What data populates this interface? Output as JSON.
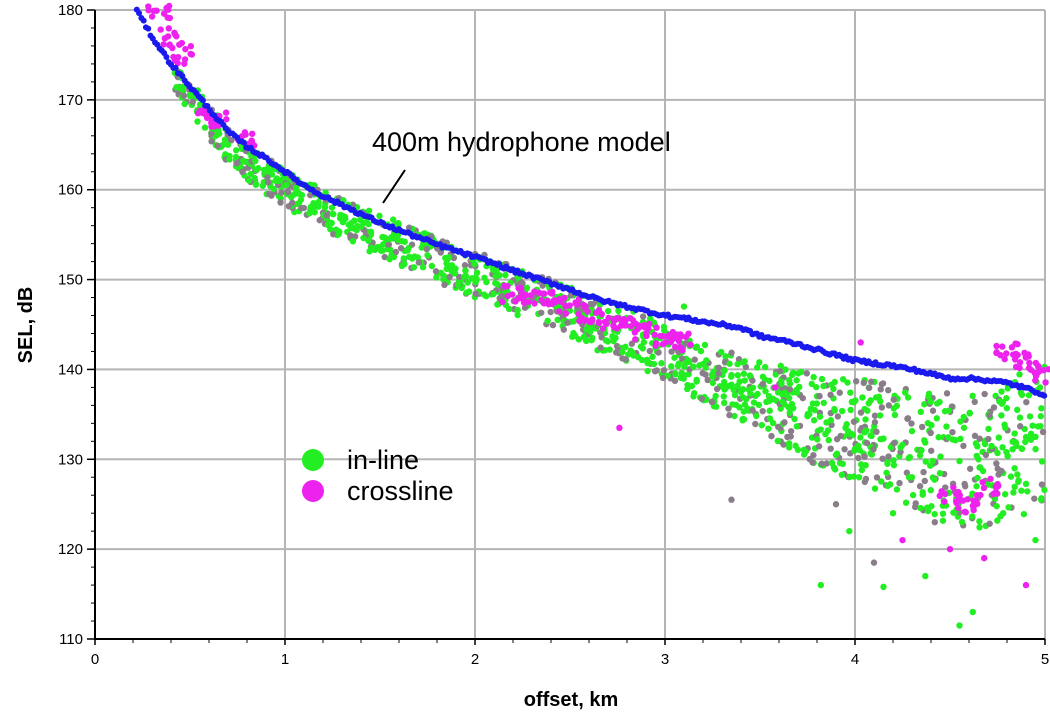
{
  "chart_data": {
    "type": "scatter",
    "xlabel": "offset, km",
    "ylabel": "SEL, dB",
    "xlim": [
      0,
      5
    ],
    "ylim": [
      110,
      180
    ],
    "xticks": [
      0,
      1,
      2,
      3,
      4,
      5
    ],
    "xtick_labels": [
      "0",
      "1",
      "2",
      "3",
      "4",
      "5"
    ],
    "yticks": [
      110,
      120,
      130,
      140,
      150,
      160,
      170,
      180
    ],
    "ytick_labels": [
      "110",
      "120",
      "130",
      "140",
      "150",
      "160",
      "170",
      "180"
    ],
    "grid": true,
    "legend_placement": "lower-left",
    "legend": [
      {
        "label": "in-line",
        "color": "#22ee22"
      },
      {
        "label": "crossline",
        "color": "#ee22ee"
      }
    ],
    "annotation": {
      "text": "400m hydrophone model",
      "x": 1.5,
      "y": 157
    },
    "series": [
      {
        "name": "400m hydrophone model",
        "color": "#1a1aee",
        "x": [
          0.22,
          0.3,
          0.4,
          0.5,
          0.6,
          0.7,
          0.8,
          0.9,
          1.0,
          1.1,
          1.2,
          1.3,
          1.4,
          1.5,
          1.6,
          1.7,
          1.8,
          1.9,
          2.0,
          2.1,
          2.2,
          2.3,
          2.4,
          2.5,
          2.6,
          2.7,
          2.8,
          2.9,
          3.0,
          3.1,
          3.2,
          3.3,
          3.4,
          3.5,
          3.6,
          3.7,
          3.8,
          3.9,
          4.0,
          4.1,
          4.2,
          4.3,
          4.4,
          4.5,
          4.6,
          4.7,
          4.8,
          4.9,
          5.0
        ],
        "y": [
          180,
          177,
          174,
          171.5,
          169,
          166.5,
          164.8,
          163.5,
          162,
          160.5,
          159.3,
          158.3,
          157.3,
          156.3,
          155.5,
          154.7,
          153.9,
          153.2,
          152.5,
          151.8,
          151.0,
          150.3,
          149.6,
          148.9,
          148.1,
          147.5,
          147.0,
          146.5,
          146.0,
          145.7,
          145.3,
          145.0,
          144.6,
          143.7,
          143.3,
          142.8,
          142.2,
          141.6,
          141.0,
          140.7,
          140.4,
          140.0,
          139.5,
          139.0,
          139.0,
          138.8,
          138.5,
          137.9,
          137.2
        ]
      },
      {
        "name": "in-line",
        "color": "#22ee22",
        "x": [
          0.42,
          0.5,
          0.55,
          0.62,
          0.7,
          0.78,
          0.85,
          0.95,
          1.05,
          1.15,
          1.25,
          1.35,
          1.45,
          1.55,
          1.65,
          1.75,
          1.85,
          1.95,
          2.05,
          2.15,
          2.25,
          2.35,
          2.45,
          2.55,
          2.65,
          2.75,
          2.85,
          2.95,
          3.05,
          3.15,
          3.25,
          3.35,
          3.45,
          3.55,
          3.65,
          3.75,
          3.85,
          3.95,
          4.05,
          4.15,
          4.25,
          4.35,
          4.45,
          4.55,
          4.65,
          4.75,
          4.85,
          4.95
        ],
        "y": [
          173,
          170.5,
          169,
          167,
          165,
          163.2,
          162.2,
          161,
          159.5,
          158.5,
          157.3,
          156.3,
          155.3,
          154.5,
          153.5,
          152.7,
          151.8,
          151.0,
          150.2,
          149.4,
          148.5,
          147.6,
          146.8,
          146.0,
          145.0,
          144.2,
          143.3,
          142.4,
          141.3,
          140.3,
          139.2,
          138.3,
          137.3,
          136.5,
          135.8,
          134.8,
          134.1,
          133.5,
          133.0,
          132.3,
          131.6,
          131.0,
          130.3,
          129.8,
          130.0,
          130.7,
          131.5,
          132.5
        ]
      },
      {
        "name": "crossline",
        "color": "#ee22ee",
        "x": [
          0.34,
          0.4,
          0.45,
          0.6,
          0.65,
          0.8,
          2.2,
          2.3,
          2.4,
          2.5,
          2.6,
          2.7,
          2.8,
          2.9,
          3.0,
          3.08,
          4.5,
          4.6,
          4.7,
          4.8,
          4.9,
          4.97
        ],
        "y": [
          180,
          177,
          175,
          168.5,
          168,
          165.5,
          148.5,
          148.3,
          147.8,
          147.0,
          146.2,
          145.5,
          144.8,
          144.2,
          143.5,
          143.0,
          126,
          125,
          127,
          142,
          141,
          139.5
        ]
      }
    ],
    "scatter_extras": {
      "x": [
        2.76,
        3.1,
        3.15,
        3.35,
        3.58,
        3.82,
        3.9,
        3.97,
        4.03,
        4.1,
        4.15,
        4.2,
        4.25,
        4.3,
        4.37,
        4.42,
        4.5,
        4.55,
        4.58,
        4.62,
        4.68,
        4.72,
        4.78,
        4.84,
        4.9,
        4.95,
        4.98
      ],
      "y": [
        133.5,
        147,
        137,
        125.5,
        138,
        116,
        125,
        122,
        143,
        118.5,
        115.8,
        124,
        121,
        128,
        117,
        123,
        120,
        111.5,
        127,
        113,
        119,
        126,
        124,
        129,
        116,
        121,
        125.5
      ]
    }
  }
}
